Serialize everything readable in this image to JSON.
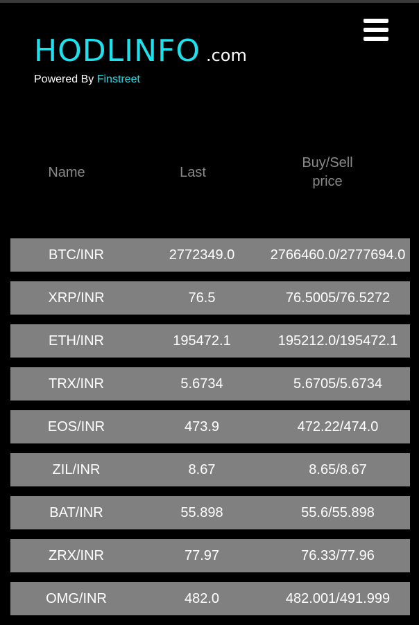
{
  "header": {
    "logo": "HODLINFO",
    "logo_tld": ".com",
    "powered_by": "Powered By",
    "powered_link": "Finstreet"
  },
  "table": {
    "columns": {
      "name": "Name",
      "last": "Last",
      "buysell_line1": "Buy/Sell",
      "buysell_line2": "price"
    },
    "rows": [
      {
        "name": "BTC/INR",
        "last": "2772349.0",
        "buysell": "2766460.0/2777694.0"
      },
      {
        "name": "XRP/INR",
        "last": "76.5",
        "buysell": "76.5005/76.5272"
      },
      {
        "name": "ETH/INR",
        "last": "195472.1",
        "buysell": "195212.0/195472.1"
      },
      {
        "name": "TRX/INR",
        "last": "5.6734",
        "buysell": "5.6705/5.6734"
      },
      {
        "name": "EOS/INR",
        "last": "473.9",
        "buysell": "472.22/474.0"
      },
      {
        "name": "ZIL/INR",
        "last": "8.67",
        "buysell": "8.65/8.67"
      },
      {
        "name": "BAT/INR",
        "last": "55.898",
        "buysell": "55.6/55.898"
      },
      {
        "name": "ZRX/INR",
        "last": "77.97",
        "buysell": "76.33/77.96"
      },
      {
        "name": "OMG/INR",
        "last": "482.0",
        "buysell": "482.001/491.999"
      }
    ]
  },
  "colors": {
    "background": "#000000",
    "accent": "#1de1ec",
    "row_bg": "#808080",
    "header_text": "#8a8a8a"
  },
  "icons": {
    "menu": "hamburger-menu-icon"
  }
}
